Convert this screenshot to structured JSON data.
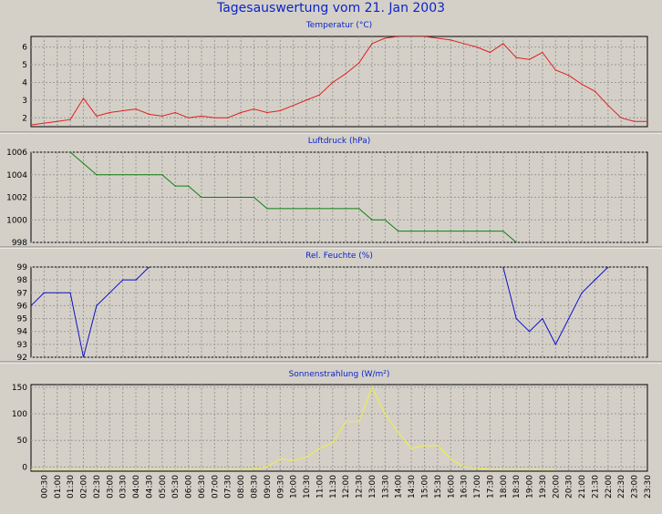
{
  "page": {
    "title": "Tagesauswertung vom 21. Jan 2003"
  },
  "colors": {
    "background": "#d4d0c8",
    "title": "#0b24c8",
    "grid": "#9a9a9a"
  },
  "chart_data": [
    {
      "type": "line",
      "title": "Temperatur (°C)",
      "color": "#e02020",
      "ylim": [
        1.5,
        6.6
      ],
      "yticks": [
        2,
        3,
        4,
        5,
        6
      ],
      "grid": true,
      "x": [
        "00:00",
        "00:30",
        "01:00",
        "01:30",
        "02:00",
        "02:30",
        "03:00",
        "03:30",
        "04:00",
        "04:30",
        "05:00",
        "05:30",
        "06:00",
        "06:30",
        "07:00",
        "07:30",
        "08:00",
        "08:30",
        "09:00",
        "09:30",
        "10:00",
        "10:30",
        "11:00",
        "11:30",
        "12:00",
        "12:30",
        "13:00",
        "13:30",
        "14:00",
        "14:30",
        "15:00",
        "15:30",
        "16:00",
        "16:30",
        "17:00",
        "17:30",
        "18:00",
        "18:30",
        "19:00",
        "19:30",
        "20:00",
        "20:30",
        "21:00",
        "21:30",
        "22:00",
        "22:30",
        "23:00",
        "23:30"
      ],
      "values": [
        1.6,
        1.7,
        1.8,
        1.9,
        3.1,
        2.1,
        2.3,
        2.4,
        2.5,
        2.2,
        2.1,
        2.3,
        2.0,
        2.1,
        2.0,
        2.0,
        2.3,
        2.5,
        2.3,
        2.4,
        2.7,
        3.0,
        3.3,
        4.0,
        4.5,
        5.1,
        6.2,
        6.5,
        6.6,
        6.6,
        6.6,
        6.5,
        6.4,
        6.2,
        6.0,
        5.7,
        6.2,
        5.4,
        5.3,
        5.7,
        4.7,
        4.4,
        3.9,
        3.5,
        2.7,
        2.0,
        1.8,
        1.8
      ]
    },
    {
      "type": "line",
      "title": "Luftdruck (hPa)",
      "color": "#108010",
      "ylim": [
        998,
        1006
      ],
      "yticks": [
        998,
        1000,
        1002,
        1004,
        1006
      ],
      "grid": true,
      "x": [
        "01:30",
        "02:00",
        "02:30",
        "03:00",
        "03:30",
        "04:00",
        "04:30",
        "05:00",
        "05:30",
        "06:00",
        "06:30",
        "07:00",
        "07:30",
        "08:00",
        "08:30",
        "09:00",
        "09:30",
        "10:00",
        "10:30",
        "11:00",
        "11:30",
        "12:00",
        "12:30",
        "13:00",
        "13:30",
        "14:00",
        "14:30",
        "15:00",
        "15:30",
        "16:00",
        "16:30",
        "17:00",
        "17:30",
        "18:00",
        "18:30"
      ],
      "values": [
        1006,
        1005,
        1004,
        1004,
        1004,
        1004,
        1004,
        1004,
        1003,
        1003,
        1002,
        1002,
        1002,
        1002,
        1002,
        1001,
        1001,
        1001,
        1001,
        1001,
        1001,
        1001,
        1001,
        1000,
        1000,
        999,
        999,
        999,
        999,
        999,
        999,
        999,
        999,
        999,
        998
      ]
    },
    {
      "type": "line",
      "title": "Rel. Feuchte (%)",
      "color": "#1010c8",
      "ylim": [
        92,
        99
      ],
      "yticks": [
        92,
        93,
        94,
        95,
        96,
        97,
        98,
        99
      ],
      "grid": true,
      "x": [
        "00:00",
        "00:30",
        "01:00",
        "01:30",
        "02:00",
        "02:30",
        "03:00",
        "03:30",
        "04:00",
        "04:30",
        "18:00",
        "18:30",
        "19:00",
        "19:30",
        "20:00",
        "20:30",
        "21:00",
        "21:30",
        "22:00"
      ],
      "values": [
        96,
        97,
        97,
        97,
        92,
        96,
        97,
        98,
        98,
        99,
        99,
        95,
        94,
        95,
        93,
        95,
        97,
        98,
        99
      ],
      "segments": [
        [
          0,
          9
        ],
        [
          10,
          18
        ]
      ]
    },
    {
      "type": "line",
      "title": "Sonnenstrahlung (W/m²)",
      "color": "#f0f040",
      "ylim": [
        -8,
        155
      ],
      "yticks": [
        0,
        50,
        100,
        150
      ],
      "grid": true,
      "x": [
        "00:00",
        "00:30",
        "01:00",
        "01:30",
        "02:00",
        "02:30",
        "03:00",
        "03:30",
        "04:00",
        "04:30",
        "05:00",
        "05:30",
        "06:00",
        "06:30",
        "07:00",
        "07:30",
        "08:00",
        "08:30",
        "09:00",
        "09:30",
        "10:00",
        "10:30",
        "11:00",
        "11:30",
        "12:00",
        "12:30",
        "13:00",
        "13:30",
        "14:00",
        "14:30",
        "15:00",
        "15:30",
        "16:00",
        "16:30",
        "17:00",
        "17:30",
        "18:00",
        "18:30",
        "19:00",
        "19:30",
        "20:00"
      ],
      "values": [
        -5,
        -5,
        -5,
        -5,
        -5,
        -5,
        -5,
        -5,
        -5,
        -5,
        -5,
        -5,
        -5,
        -5,
        -5,
        -5,
        -5,
        -4,
        0,
        15,
        12,
        18,
        35,
        45,
        85,
        85,
        150,
        100,
        65,
        35,
        40,
        40,
        15,
        0,
        -2,
        -5,
        -5,
        -5,
        -5,
        -5,
        -5
      ]
    }
  ],
  "x_axis": {
    "tick_labels": [
      "00:30",
      "01:00",
      "01:30",
      "02:00",
      "02:30",
      "03:00",
      "03:30",
      "04:00",
      "04:30",
      "05:00",
      "05:30",
      "06:00",
      "06:30",
      "07:00",
      "07:30",
      "08:00",
      "08:30",
      "09:00",
      "09:30",
      "10:00",
      "10:30",
      "11:00",
      "11:30",
      "12:00",
      "12:30",
      "13:00",
      "13:30",
      "14:00",
      "14:30",
      "15:00",
      "15:30",
      "16:00",
      "16:30",
      "17:00",
      "17:30",
      "18:00",
      "18:30",
      "19:00",
      "19:30",
      "20:00",
      "20:30",
      "21:00",
      "21:30",
      "22:00",
      "22:30",
      "23:00",
      "23:30"
    ]
  }
}
